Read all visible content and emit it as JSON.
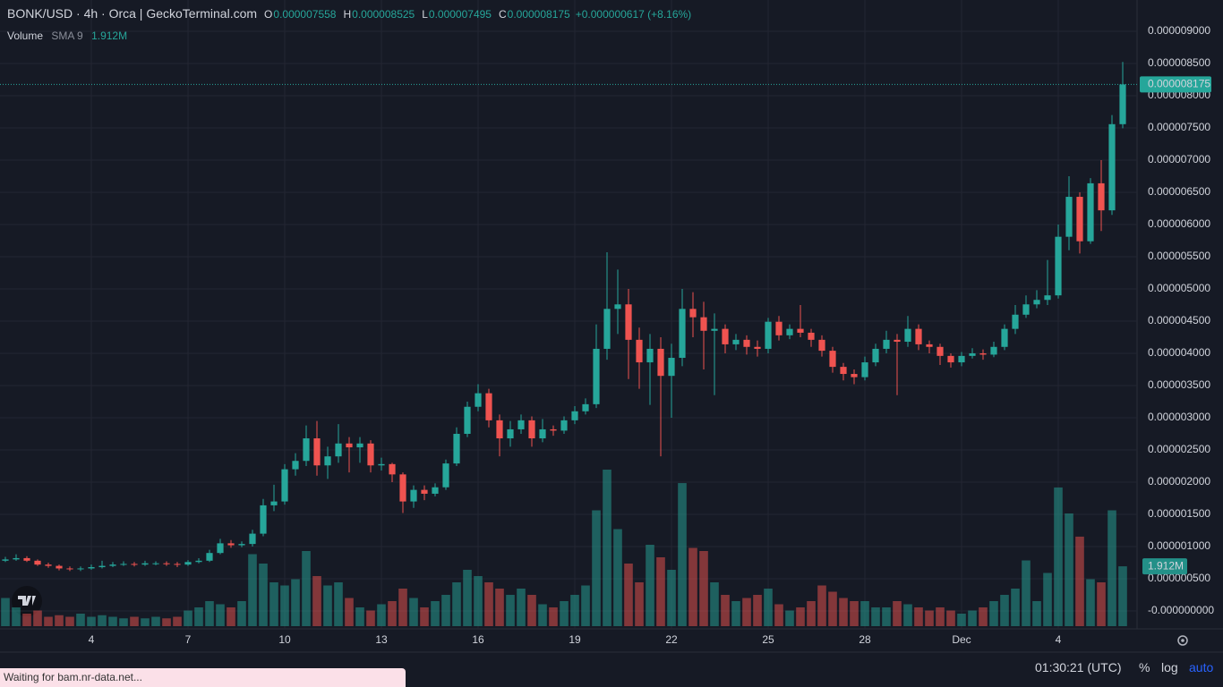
{
  "header": {
    "symbol": "BONK/USD · 4h · Orca  |  GeckoTerminal.com",
    "open_key": "O",
    "open": "0.000007558",
    "high_key": "H",
    "high": "0.000008525",
    "low_key": "L",
    "low": "0.000007495",
    "close_key": "C",
    "close": "0.000008175",
    "change": "+0.000000617 (+8.16%)",
    "volume_title": "Volume",
    "volume_sma": "SMA 9",
    "volume_value": "1.912M"
  },
  "chart_data": {
    "type": "candlestick",
    "up_color": "#26a69a",
    "down_color": "#ef5350",
    "grid": true,
    "xlim": [
      -0.5,
      105
    ],
    "xticks": [
      {
        "value": 8,
        "label": "4"
      },
      {
        "value": 17,
        "label": "7"
      },
      {
        "value": 26,
        "label": "10"
      },
      {
        "value": 35,
        "label": "13"
      },
      {
        "value": 44,
        "label": "16"
      },
      {
        "value": 53,
        "label": "19"
      },
      {
        "value": 62,
        "label": "22"
      },
      {
        "value": 71,
        "label": "25"
      },
      {
        "value": 80,
        "label": "28"
      },
      {
        "value": 89,
        "label": "Dec"
      },
      {
        "value": 98,
        "label": "4"
      }
    ],
    "ylim": [
      -2.78e-07,
      9.486e-06
    ],
    "yticks": [
      {
        "value": 9e-06,
        "label": "0.000009000"
      },
      {
        "value": 8.5e-06,
        "label": "0.000008500"
      },
      {
        "value": 8e-06,
        "label": "0.000008000"
      },
      {
        "value": 7.5e-06,
        "label": "0.000007500"
      },
      {
        "value": 7e-06,
        "label": "0.000007000"
      },
      {
        "value": 6.5e-06,
        "label": "0.000006500"
      },
      {
        "value": 6e-06,
        "label": "0.000006000"
      },
      {
        "value": 5.5e-06,
        "label": "0.000005500"
      },
      {
        "value": 5e-06,
        "label": "0.000005000"
      },
      {
        "value": 4.5e-06,
        "label": "0.000004500"
      },
      {
        "value": 4e-06,
        "label": "0.000004000"
      },
      {
        "value": 3.5e-06,
        "label": "0.000003500"
      },
      {
        "value": 3e-06,
        "label": "0.000003000"
      },
      {
        "value": 2.5e-06,
        "label": "0.000002500"
      },
      {
        "value": 2e-06,
        "label": "0.000002000"
      },
      {
        "value": 1.5e-06,
        "label": "0.000001500"
      },
      {
        "value": 1e-06,
        "label": "0.000001000"
      },
      {
        "value": 5e-07,
        "label": "0.000000500"
      },
      {
        "value": 0,
        "label": "-0.000000000"
      }
    ],
    "open": [
      7.8e-07,
      8e-07,
      8.2e-07,
      7.8e-07,
      7.2e-07,
      7e-07,
      6.6e-07,
      6.5e-07,
      6.6e-07,
      6.8e-07,
      7e-07,
      7.2e-07,
      7.3e-07,
      7.2e-07,
      7.4e-07,
      7.4e-07,
      7.3e-07,
      7.2e-07,
      7.6e-07,
      7.8e-07,
      9e-07,
      1.05e-06,
      1.02e-06,
      1.04e-06,
      1.2e-06,
      1.64e-06,
      1.7e-06,
      2.2e-06,
      2.33e-06,
      2.68e-06,
      2.26e-06,
      2.4e-06,
      2.6e-06,
      2.54e-06,
      2.6e-06,
      2.26e-06,
      2.28e-06,
      2.12e-06,
      1.7e-06,
      1.88e-06,
      1.82e-06,
      1.92e-06,
      2.29e-06,
      2.75e-06,
      3.17e-06,
      3.38e-06,
      2.96e-06,
      2.68e-06,
      2.82e-06,
      2.96e-06,
      2.68e-06,
      2.82e-06,
      2.8e-06,
      2.96e-06,
      3.1e-06,
      3.21e-06,
      4.07e-06,
      4.69e-06,
      4.76e-06,
      4.21e-06,
      3.86e-06,
      4.07e-06,
      3.65e-06,
      3.93e-06,
      4.69e-06,
      4.56e-06,
      4.35e-06,
      4.38e-06,
      4.14e-06,
      4.21e-06,
      4.1e-06,
      4.07e-06,
      4.49e-06,
      4.28e-06,
      4.38e-06,
      4.32e-06,
      4.21e-06,
      4.04e-06,
      3.79e-06,
      3.68e-06,
      3.63e-06,
      3.86e-06,
      4.07e-06,
      4.21e-06,
      4.18e-06,
      4.38e-06,
      4.14e-06,
      4.1e-06,
      3.96e-06,
      3.86e-06,
      3.96e-06,
      4e-06,
      3.98e-06,
      4.1e-06,
      4.38e-06,
      4.6e-06,
      4.76e-06,
      4.83e-06,
      4.9e-06,
      5.81e-06,
      6.43e-06,
      5.74e-06,
      6.64e-06,
      6.22e-06,
      7.558e-06
    ],
    "high": [
      8.4e-07,
      8.8e-07,
      8.5e-07,
      8e-07,
      7.5e-07,
      7.2e-07,
      6.9e-07,
      6.9e-07,
      7.2e-07,
      7.8e-07,
      7.6e-07,
      7.7e-07,
      7.6e-07,
      7.8e-07,
      7.7e-07,
      7.7e-07,
      7.6e-07,
      7.9e-07,
      8.2e-07,
      9.5e-07,
      1.12e-06,
      1.1e-06,
      1.08e-06,
      1.26e-06,
      1.74e-06,
      1.96e-06,
      2.28e-06,
      2.45e-06,
      2.88e-06,
      2.95e-06,
      2.55e-06,
      2.9e-06,
      2.7e-06,
      2.7e-06,
      2.65e-06,
      2.38e-06,
      2.3e-06,
      2.15e-06,
      1.95e-06,
      1.95e-06,
      1.98e-06,
      2.35e-06,
      2.85e-06,
      3.25e-06,
      3.52e-06,
      3.45e-06,
      3.05e-06,
      2.95e-06,
      3.05e-06,
      3.02e-06,
      2.98e-06,
      2.88e-06,
      3.02e-06,
      3.18e-06,
      3.3e-06,
      4.45e-06,
      5.57e-06,
      5.3e-06,
      5e-06,
      4.4e-06,
      4.3e-06,
      4.25e-06,
      4.15e-06,
      5e-06,
      4.95e-06,
      4.8e-06,
      4.62e-06,
      4.45e-06,
      4.3e-06,
      4.28e-06,
      4.2e-06,
      4.55e-06,
      4.58e-06,
      4.45e-06,
      4.75e-06,
      4.38e-06,
      4.28e-06,
      4.1e-06,
      3.85e-06,
      3.75e-06,
      3.95e-06,
      4.15e-06,
      4.35e-06,
      4.3e-06,
      4.58e-06,
      4.45e-06,
      4.2e-06,
      4.15e-06,
      4e-06,
      4.02e-06,
      4.08e-06,
      4.06e-06,
      4.18e-06,
      4.45e-06,
      4.75e-06,
      4.9e-06,
      4.98e-06,
      5.45e-06,
      6e-06,
      6.75e-06,
      6.5e-06,
      6.72e-06,
      7e-06,
      7.7e-06,
      8.525e-06
    ],
    "low": [
      7.6e-07,
      7.8e-07,
      7.6e-07,
      7e-07,
      6.7e-07,
      6.3e-07,
      6.2e-07,
      6.2e-07,
      6.4e-07,
      6.6e-07,
      6.8e-07,
      7e-07,
      6.9e-07,
      7e-07,
      7.1e-07,
      7e-07,
      6.8e-07,
      7e-07,
      7.4e-07,
      7.6e-07,
      8.8e-07,
      9.8e-07,
      9.9e-07,
      1e-06,
      1.16e-06,
      1.55e-06,
      1.65e-06,
      2.1e-06,
      2.25e-06,
      2.1e-06,
      2.05e-06,
      2.3e-06,
      2.15e-06,
      2.3e-06,
      2.15e-06,
      2.18e-06,
      2e-06,
      1.52e-06,
      1.6e-06,
      1.72e-06,
      1.78e-06,
      1.88e-06,
      2.25e-06,
      2.7e-06,
      3.1e-06,
      2.85e-06,
      2.4e-06,
      2.55e-06,
      2.75e-06,
      2.55e-06,
      2.62e-06,
      2.72e-06,
      2.75e-06,
      2.9e-06,
      3.05e-06,
      3.15e-06,
      3.9e-06,
      4.3e-06,
      3.6e-06,
      3.45e-06,
      3.2e-06,
      2.4e-06,
      3e-06,
      3.8e-06,
      4.25e-06,
      3.75e-06,
      3.35e-06,
      4e-06,
      4.05e-06,
      3.98e-06,
      3.95e-06,
      4e-06,
      4.2e-06,
      4.22e-06,
      4.25e-06,
      4.1e-06,
      3.95e-06,
      3.7e-06,
      3.58e-06,
      3.52e-06,
      3.58e-06,
      3.8e-06,
      4e-06,
      3.35e-06,
      4.1e-06,
      4.05e-06,
      4e-06,
      3.82e-06,
      3.78e-06,
      3.8e-06,
      3.92e-06,
      3.9e-06,
      3.94e-06,
      4.05e-06,
      4.3e-06,
      4.55e-06,
      4.7e-06,
      4.75e-06,
      4.85e-06,
      5.6e-06,
      5.55e-06,
      5.7e-06,
      5.9e-06,
      6.15e-06,
      7.495e-06
    ],
    "close": [
      8e-07,
      8.2e-07,
      7.8e-07,
      7.2e-07,
      7e-07,
      6.6e-07,
      6.5e-07,
      6.6e-07,
      6.8e-07,
      7e-07,
      7.2e-07,
      7.3e-07,
      7.2e-07,
      7.4e-07,
      7.4e-07,
      7.3e-07,
      7.2e-07,
      7.6e-07,
      7.8e-07,
      9e-07,
      1.05e-06,
      1.02e-06,
      1.04e-06,
      1.2e-06,
      1.64e-06,
      1.7e-06,
      2.2e-06,
      2.33e-06,
      2.68e-06,
      2.26e-06,
      2.4e-06,
      2.6e-06,
      2.54e-06,
      2.6e-06,
      2.26e-06,
      2.28e-06,
      2.12e-06,
      1.7e-06,
      1.88e-06,
      1.82e-06,
      1.92e-06,
      2.29e-06,
      2.75e-06,
      3.17e-06,
      3.38e-06,
      2.96e-06,
      2.68e-06,
      2.82e-06,
      2.96e-06,
      2.68e-06,
      2.82e-06,
      2.8e-06,
      2.96e-06,
      3.1e-06,
      3.21e-06,
      4.07e-06,
      4.69e-06,
      4.76e-06,
      4.21e-06,
      3.86e-06,
      4.07e-06,
      3.65e-06,
      3.93e-06,
      4.69e-06,
      4.56e-06,
      4.35e-06,
      4.38e-06,
      4.14e-06,
      4.21e-06,
      4.1e-06,
      4.07e-06,
      4.49e-06,
      4.28e-06,
      4.38e-06,
      4.32e-06,
      4.21e-06,
      4.04e-06,
      3.79e-06,
      3.68e-06,
      3.63e-06,
      3.86e-06,
      4.07e-06,
      4.21e-06,
      4.18e-06,
      4.38e-06,
      4.14e-06,
      4.1e-06,
      3.96e-06,
      3.86e-06,
      3.96e-06,
      4e-06,
      3.98e-06,
      4.1e-06,
      4.38e-06,
      4.6e-06,
      4.76e-06,
      4.83e-06,
      4.9e-06,
      5.81e-06,
      6.43e-06,
      5.74e-06,
      6.64e-06,
      6.22e-06,
      7.558e-06,
      8.175e-06
    ],
    "last_price_label": "0.000008175",
    "volume": [
      0.9,
      0.6,
      0.4,
      0.5,
      0.3,
      0.35,
      0.3,
      0.4,
      0.3,
      0.35,
      0.3,
      0.25,
      0.3,
      0.25,
      0.3,
      0.25,
      0.3,
      0.5,
      0.6,
      0.8,
      0.7,
      0.6,
      0.8,
      2.3,
      2.0,
      1.4,
      1.3,
      1.5,
      2.4,
      1.6,
      1.3,
      1.4,
      0.9,
      0.6,
      0.5,
      0.7,
      0.8,
      1.2,
      0.9,
      0.6,
      0.8,
      1.0,
      1.4,
      1.8,
      1.6,
      1.4,
      1.2,
      1.0,
      1.2,
      1.0,
      0.7,
      0.6,
      0.8,
      1.0,
      1.3,
      3.7,
      5.0,
      3.1,
      2.0,
      1.4,
      2.6,
      2.2,
      1.8,
      4.57,
      2.5,
      2.4,
      1.4,
      1.0,
      0.8,
      0.9,
      1.0,
      1.2,
      0.7,
      0.5,
      0.6,
      0.8,
      1.3,
      1.1,
      0.9,
      0.8,
      0.8,
      0.6,
      0.6,
      0.8,
      0.7,
      0.6,
      0.5,
      0.6,
      0.5,
      0.4,
      0.5,
      0.6,
      0.8,
      1.0,
      1.2,
      2.1,
      0.8,
      1.7,
      4.43,
      3.6,
      2.86,
      1.5,
      1.4,
      3.7,
      1.912
    ],
    "volume_last_label": "1.912M"
  },
  "toolbar": {
    "time": "01:30:21 (UTC)",
    "percent": "%",
    "log": "log",
    "auto": "auto"
  },
  "status": "Waiting for bam.nr-data.net..."
}
